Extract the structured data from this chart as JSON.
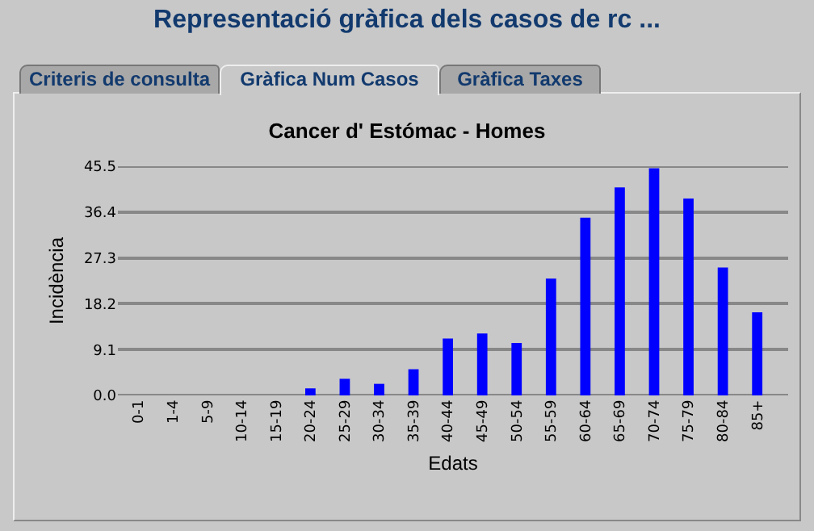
{
  "chart_data": {
    "type": "bar",
    "title": "Cancer d' Estómac - Homes",
    "xlabel": "Edats",
    "ylabel": "Incidència",
    "annotations": [
      "Representació gràfica dels casos de rc ...",
      "Criteris de consulta",
      "Gràfica Num Casos",
      "Gràfica Taxes"
    ],
    "categories": [
      "0-1",
      "1-4",
      "5-9",
      "10-14",
      "15-19",
      "20-24",
      "25-29",
      "30-34",
      "35-39",
      "40-44",
      "45-49",
      "50-54",
      "55-59",
      "60-64",
      "65-69",
      "70-74",
      "75-79",
      "80-84",
      "85+"
    ],
    "values": [
      0,
      0,
      0,
      0,
      0,
      1.4,
      3.3,
      2.3,
      5.2,
      11.3,
      12.3,
      10.4,
      23.2,
      35.3,
      41.3,
      45.1,
      39.1,
      25.4,
      16.5
    ],
    "color": "#0000ff",
    "ylim": [
      0,
      45.5
    ],
    "yticks": [
      {
        "value": 0,
        "label": "0.0"
      },
      9.1,
      18.2,
      27.3,
      36.4,
      45.5
    ],
    "grid": "y"
  }
}
